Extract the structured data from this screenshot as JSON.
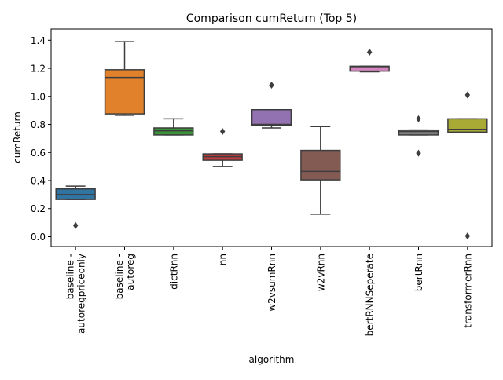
{
  "chart_data": {
    "type": "box",
    "title": "Comparison cumReturn (Top 5)",
    "xlabel": "algorithm",
    "ylabel": "cumReturn",
    "ylim": [
      -0.07,
      1.48
    ],
    "yticks": [
      "0.0",
      "0.2",
      "0.4",
      "0.6",
      "0.8",
      "1.0",
      "1.2",
      "1.4"
    ],
    "ytick_values": [
      0.0,
      0.2,
      0.4,
      0.6,
      0.8,
      1.0,
      1.2,
      1.4
    ],
    "grid": false,
    "legend": "none",
    "categories": [
      {
        "label_lines": [
          "baseline -",
          "autoregpriceonly"
        ],
        "color": "#3274a1",
        "whislo": 0.265,
        "q1": 0.265,
        "med": 0.3,
        "q3": 0.34,
        "whishi": 0.36,
        "fliers": [
          0.08
        ]
      },
      {
        "label_lines": [
          "baseline -",
          "autoreg"
        ],
        "color": "#e1812c",
        "whislo": 0.865,
        "q1": 0.875,
        "med": 1.135,
        "q3": 1.19,
        "whishi": 1.39,
        "fliers": []
      },
      {
        "label_lines": [
          "dictRnn"
        ],
        "color": "#3a923a",
        "whislo": 0.725,
        "q1": 0.725,
        "med": 0.755,
        "q3": 0.775,
        "whishi": 0.84,
        "fliers": []
      },
      {
        "label_lines": [
          "nn"
        ],
        "color": "#c03d3e",
        "whislo": 0.5,
        "q1": 0.545,
        "med": 0.57,
        "q3": 0.59,
        "whishi": 0.59,
        "fliers": [
          0.75
        ]
      },
      {
        "label_lines": [
          "w2vsumRnn"
        ],
        "color": "#9372b2",
        "whislo": 0.775,
        "q1": 0.795,
        "med": 0.8,
        "q3": 0.905,
        "whishi": 0.905,
        "fliers": [
          1.08
        ]
      },
      {
        "label_lines": [
          "w2vRnn"
        ],
        "color": "#845b53",
        "whislo": 0.16,
        "q1": 0.405,
        "med": 0.465,
        "q3": 0.615,
        "whishi": 0.785,
        "fliers": []
      },
      {
        "label_lines": [
          "bertRNNSeperate"
        ],
        "color": "#d684bd",
        "whislo": 1.175,
        "q1": 1.18,
        "med": 1.205,
        "q3": 1.215,
        "whishi": 1.215,
        "fliers": [
          1.315
        ]
      },
      {
        "label_lines": [
          "bertRnn"
        ],
        "color": "#7f7f7f",
        "whislo": 0.725,
        "q1": 0.725,
        "med": 0.75,
        "q3": 0.76,
        "whishi": 0.76,
        "fliers": [
          0.84,
          0.595
        ]
      },
      {
        "label_lines": [
          "transformerRnn"
        ],
        "color": "#a9aa35",
        "whislo": 0.745,
        "q1": 0.745,
        "med": 0.765,
        "q3": 0.84,
        "whishi": 0.84,
        "fliers": [
          1.01,
          0.005
        ]
      }
    ]
  }
}
